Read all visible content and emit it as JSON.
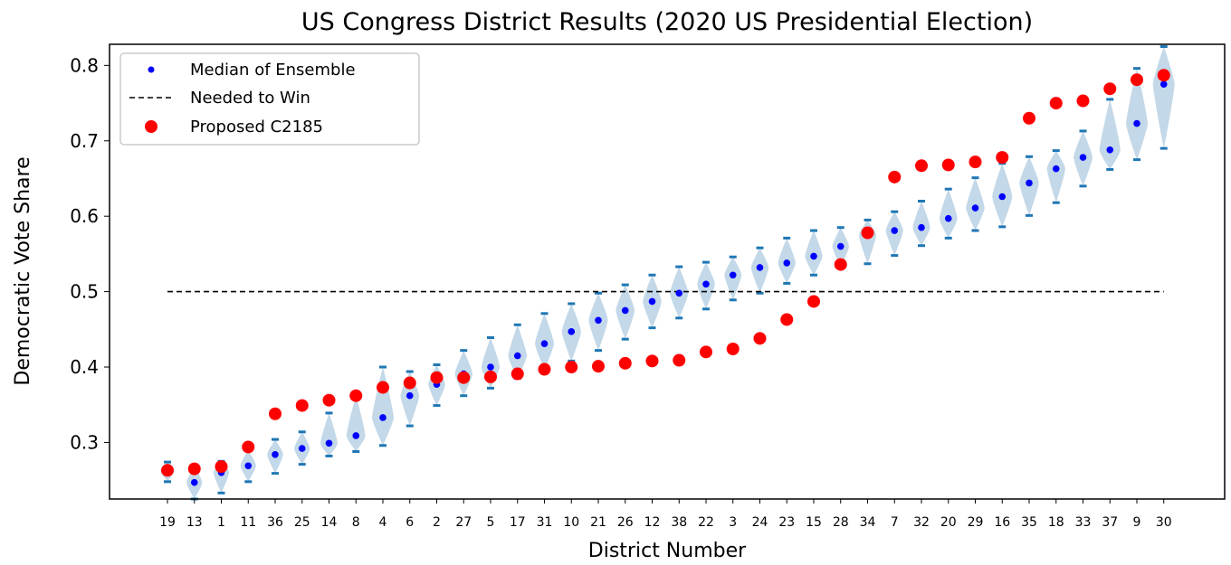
{
  "chart_data": {
    "type": "scatter",
    "title": "US Congress District Results  (2020 US Presidential Election)",
    "xlabel": "District Number",
    "ylabel": "Democratic Vote Share",
    "ylim": [
      0.225,
      0.828
    ],
    "yticks": [
      "0.3",
      "0.4",
      "0.5",
      "0.6",
      "0.7",
      "0.8"
    ],
    "yticks_values": [
      0.3,
      0.4,
      0.5,
      0.6,
      0.7,
      0.8
    ],
    "categories": [
      "19",
      "13",
      "1",
      "11",
      "36",
      "25",
      "14",
      "8",
      "4",
      "6",
      "2",
      "27",
      "5",
      "17",
      "31",
      "10",
      "21",
      "26",
      "12",
      "38",
      "22",
      "3",
      "24",
      "23",
      "15",
      "28",
      "34",
      "7",
      "32",
      "20",
      "29",
      "16",
      "35",
      "18",
      "33",
      "37",
      "9",
      "30"
    ],
    "threshold": 0.5,
    "colors": {
      "median": "#0000ff",
      "proposed": "#ff0000",
      "violin": "#bcd4e6",
      "whisker": "#1f77b4",
      "threshold": "#000000"
    },
    "legend": {
      "position": "upper-left",
      "entries": [
        "Median of Ensemble",
        "Needed to Win",
        "Proposed C2185"
      ]
    },
    "series": [
      {
        "name": "Median of Ensemble",
        "values": [
          0.263,
          0.247,
          0.26,
          0.269,
          0.284,
          0.292,
          0.299,
          0.309,
          0.333,
          0.362,
          0.377,
          0.391,
          0.4,
          0.415,
          0.431,
          0.447,
          0.462,
          0.475,
          0.487,
          0.498,
          0.51,
          0.522,
          0.532,
          0.538,
          0.547,
          0.56,
          0.575,
          0.581,
          0.585,
          0.597,
          0.611,
          0.626,
          0.644,
          0.663,
          0.678,
          0.688,
          0.723,
          0.775
        ]
      },
      {
        "name": "Proposed C2185",
        "values": [
          0.263,
          0.265,
          0.268,
          0.294,
          0.338,
          0.349,
          0.356,
          0.362,
          0.373,
          0.379,
          0.386,
          0.386,
          0.387,
          0.391,
          0.397,
          0.4,
          0.401,
          0.405,
          0.408,
          0.409,
          0.42,
          0.424,
          0.438,
          0.463,
          0.487,
          0.536,
          0.578,
          0.652,
          0.667,
          0.668,
          0.672,
          0.678,
          0.73,
          0.75,
          0.753,
          0.769,
          0.781,
          0.787
        ]
      }
    ],
    "ensemble_min": [
      0.248,
      0.225,
      0.233,
      0.248,
      0.259,
      0.271,
      0.282,
      0.288,
      0.296,
      0.322,
      0.349,
      0.362,
      0.372,
      0.385,
      0.397,
      0.408,
      0.422,
      0.437,
      0.452,
      0.465,
      0.477,
      0.489,
      0.498,
      0.511,
      0.522,
      0.533,
      0.537,
      0.548,
      0.561,
      0.571,
      0.581,
      0.586,
      0.601,
      0.618,
      0.64,
      0.662,
      0.675,
      0.69
    ],
    "ensemble_max": [
      0.274,
      0.268,
      0.275,
      0.29,
      0.304,
      0.314,
      0.339,
      0.362,
      0.4,
      0.394,
      0.403,
      0.422,
      0.439,
      0.456,
      0.471,
      0.484,
      0.498,
      0.509,
      0.522,
      0.533,
      0.539,
      0.546,
      0.558,
      0.571,
      0.581,
      0.585,
      0.595,
      0.606,
      0.62,
      0.636,
      0.651,
      0.67,
      0.679,
      0.687,
      0.713,
      0.755,
      0.796,
      0.825
    ]
  }
}
